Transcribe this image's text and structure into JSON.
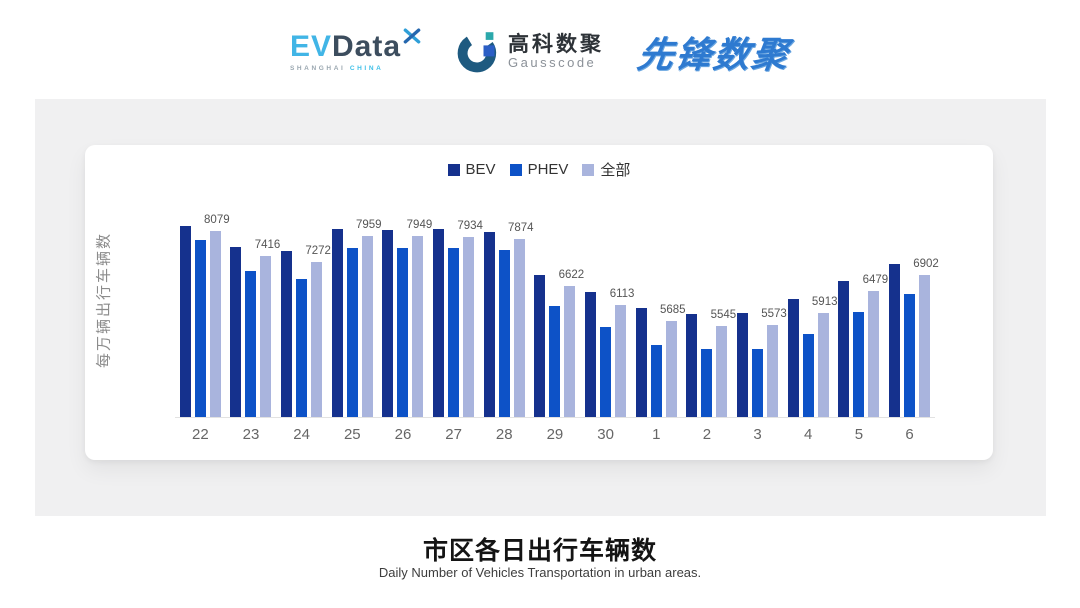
{
  "header": {
    "evdata_logo": {
      "ev": "EV",
      "data": "Data",
      "sub_left": "SHANGHAI",
      "sub_right": "CHINA"
    },
    "gausscode_logo": {
      "cn": "高科数聚",
      "en": "Gausscode"
    },
    "xianfeng_logo": {
      "text": "先锋数聚"
    }
  },
  "chart_data": {
    "type": "bar",
    "ylabel": "每万辆出行车辆数",
    "categories": [
      "22",
      "23",
      "24",
      "25",
      "26",
      "27",
      "28",
      "29",
      "30",
      "1",
      "2",
      "3",
      "4",
      "5",
      "6"
    ],
    "series": [
      {
        "id": "bev",
        "name": "BEV",
        "color": "#15318d",
        "values": [
          8230,
          7660,
          7560,
          8140,
          8120,
          8140,
          8070,
          6920,
          6450,
          6040,
          5880,
          5910,
          6270,
          6760,
          7200
        ]
      },
      {
        "id": "phev",
        "name": "PHEV",
        "color": "#0d52c7",
        "values": [
          7850,
          7010,
          6800,
          7640,
          7620,
          7620,
          7590,
          6090,
          5520,
          5050,
          4930,
          4950,
          5350,
          5930,
          6400
        ]
      },
      {
        "id": "all",
        "name": "全部",
        "color": "#a9b4dd",
        "values": [
          8079,
          7416,
          7272,
          7959,
          7949,
          7934,
          7874,
          6622,
          6113,
          5685,
          5545,
          5573,
          5913,
          6479,
          6902
        ]
      }
    ],
    "value_labels": [
      8079,
      7416,
      7272,
      7959,
      7949,
      7934,
      7874,
      6622,
      6113,
      5685,
      5545,
      5573,
      5913,
      6479,
      6902
    ],
    "labeled_series": "全部",
    "y_baseline_value": 3100,
    "y_top_value": 9100,
    "legend_position": "top",
    "grid": false
  },
  "footer": {
    "title": "市区各日出行车辆数",
    "subtitle": "Daily Number of Vehicles Transportation in urban areas."
  },
  "colors": {
    "panel_bg": "#f0f0f1",
    "card_bg": "#ffffff",
    "axis_line": "#e2e2e2",
    "bev": "#15318d",
    "phev": "#0d52c7",
    "all": "#a9b4dd"
  }
}
